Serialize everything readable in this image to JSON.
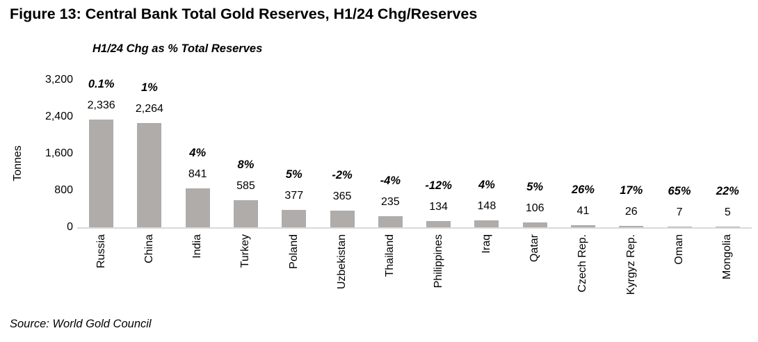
{
  "figure_title": "Figure 13: Central Bank Total Gold Reserves, H1/24 Chg/Reserves",
  "source": "Source: World Gold Council",
  "colors": {
    "bar": "#afacaa",
    "axis_line": "#d9d9d9",
    "text": "#000000",
    "background": "#ffffff"
  },
  "chart_data": {
    "type": "bar",
    "title": "Figure 13: Central Bank Total Gold Reserves, H1/24 Chg/Reserves",
    "subtitle": "H1/24 Chg as % Total Reserves",
    "ylabel": "Tonnes",
    "xlabel": "",
    "ylim": [
      0,
      3200
    ],
    "grid": false,
    "legend": "none",
    "yticks": [
      {
        "value": 3200,
        "label": "3,200"
      },
      {
        "value": 2400,
        "label": "2,400"
      },
      {
        "value": 1600,
        "label": "1,600"
      },
      {
        "value": 800,
        "label": "800"
      },
      {
        "value": 0,
        "label": "0"
      }
    ],
    "categories": [
      "Russia",
      "China",
      "India",
      "Turkey",
      "Poland",
      "Uzbekistan",
      "Thailand",
      "Philippines",
      "Iraq",
      "Qatar",
      "Czech Rep.",
      "Kyrgyz Rep.",
      "Oman",
      "Mongolia"
    ],
    "values": [
      2336,
      2264,
      841,
      585,
      377,
      365,
      235,
      134,
      148,
      106,
      41,
      26,
      7,
      5
    ],
    "value_labels": [
      "2,336",
      "2,264",
      "841",
      "585",
      "377",
      "365",
      "235",
      "134",
      "148",
      "106",
      "41",
      "26",
      "7",
      "5"
    ],
    "pct_change_labels": [
      "0.1%",
      "1%",
      "4%",
      "8%",
      "5%",
      "-2%",
      "-4%",
      "-12%",
      "4%",
      "5%",
      "26%",
      "17%",
      "65%",
      "22%"
    ],
    "source": "Source: World Gold Council"
  }
}
